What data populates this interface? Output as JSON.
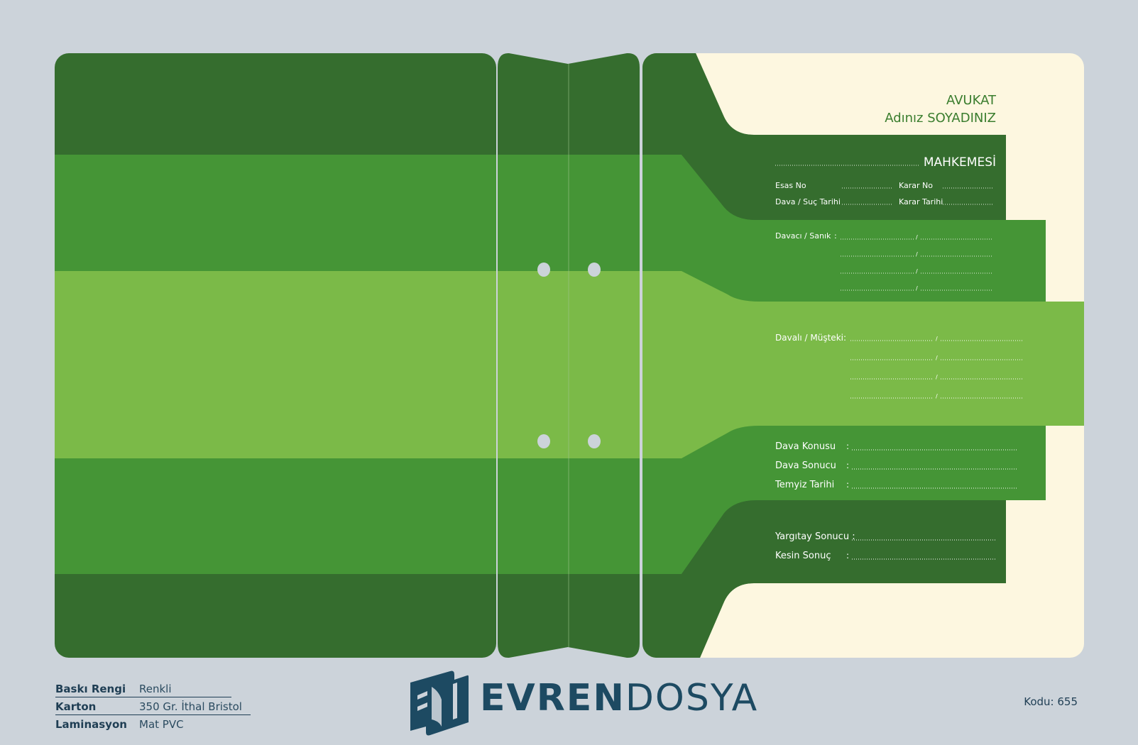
{
  "colors": {
    "background": "#ccd3da",
    "dark_green": "#356d2e",
    "mid_green": "#459536",
    "light_green": "#7bba48",
    "cream": "#fdf7e0",
    "hole": "#ccd3da",
    "brand": "#1d4a62"
  },
  "cover": {
    "header_line1": "AVUKAT",
    "header_line2": "Adınız SOYADINIZ"
  },
  "form": {
    "court_title": "MAHKEMESİ",
    "esas_no": "Esas No",
    "karar_no": "Karar No",
    "dava_suc_tarihi": "Dava / Suç Tarihi",
    "karar_tarihi": "Karar Tarihi",
    "davaci_sanik": "Davacı / Sanık",
    "davali_musteki": "Davalı / Müşteki:",
    "dava_konusu": "Dava Konusu",
    "dava_sonucu": "Dava Sonucu",
    "temyiz_tarihi": "Temyiz Tarihi",
    "yargitay_sonucu": "Yargıtay Sonucu :",
    "kesin_sonuc": "Kesin Sonuç",
    "colon": ":",
    "slash": "/"
  },
  "specs": {
    "print_color_label": "Baskı Rengi",
    "print_color_value": "Renkli",
    "board_label": "Karton",
    "board_value": "350 Gr. İthal Bristol",
    "lamination_label": "Laminasyon",
    "lamination_value": "Mat PVC"
  },
  "brand": {
    "part1": "EVREN",
    "part2": "DOSYA",
    "icon": "folder-logo-icon"
  },
  "code": "Kodu: 655"
}
